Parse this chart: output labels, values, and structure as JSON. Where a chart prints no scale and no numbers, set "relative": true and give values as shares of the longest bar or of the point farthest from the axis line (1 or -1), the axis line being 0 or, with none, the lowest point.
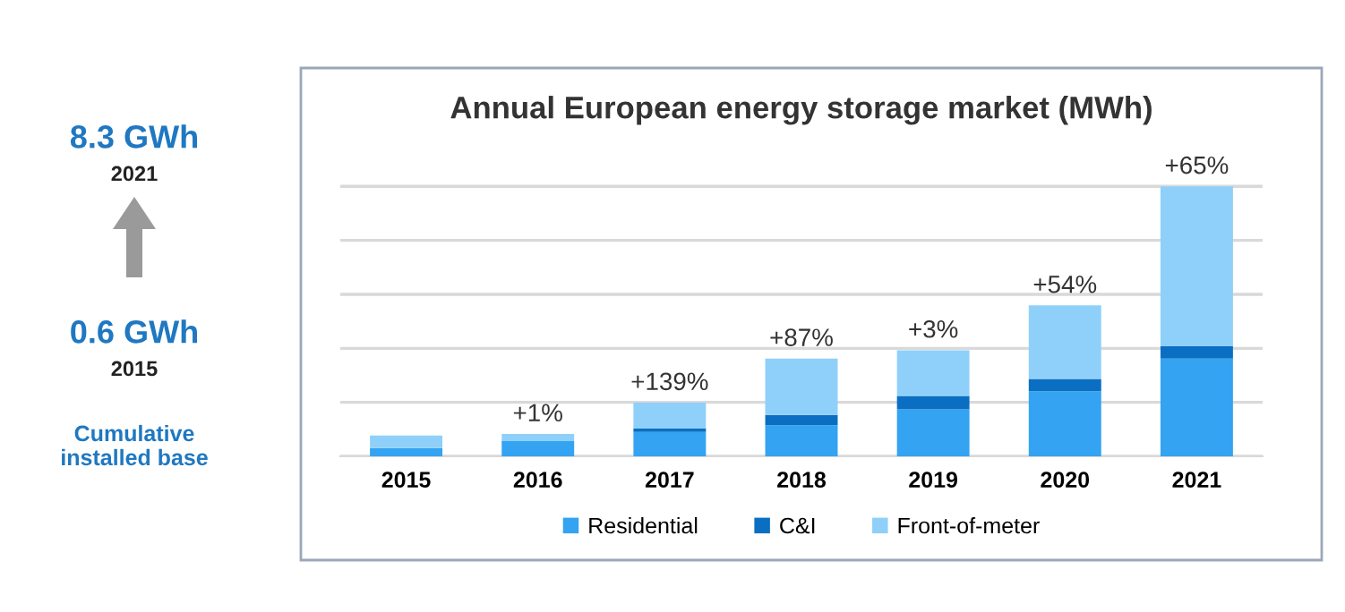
{
  "chart_data": {
    "type": "bar",
    "title": "Annual European energy storage market (MWh)",
    "stacked": true,
    "relative": true,
    "categories": [
      "2015",
      "2016",
      "2017",
      "2018",
      "2019",
      "2020",
      "2021"
    ],
    "series": [
      {
        "name": "Residential",
        "color": "#33a3f2",
        "values": [
          0.031,
          0.056,
          0.09,
          0.115,
          0.174,
          0.241,
          0.362
        ]
      },
      {
        "name": "C&I",
        "color": "#0a6fc2",
        "values": [
          0,
          0,
          0.013,
          0.038,
          0.05,
          0.046,
          0.046
        ]
      },
      {
        "name": "Front-of-meter",
        "color": "#8fd0fa",
        "values": [
          0.046,
          0.027,
          0.096,
          0.209,
          0.169,
          0.272,
          0.592
        ]
      }
    ],
    "annotations": [
      {
        "text": "+1%",
        "x": "2016",
        "y": 0.083
      },
      {
        "text": "+139%",
        "x": "2017",
        "y": 0.199
      },
      {
        "text": "+87%",
        "x": "2018",
        "y": 0.362
      },
      {
        "text": "+3%",
        "x": "2019",
        "y": 0.393
      },
      {
        "text": "+54%",
        "x": "2020",
        "y": 0.559
      },
      {
        "text": "+65%",
        "x": "2021",
        "y": 1.0
      },
      "8.3 GWh",
      "2021",
      "0.6 GWh",
      "2015",
      "Cumulative\ninstalled base"
    ],
    "grid": "y",
    "legend": "bottom"
  }
}
